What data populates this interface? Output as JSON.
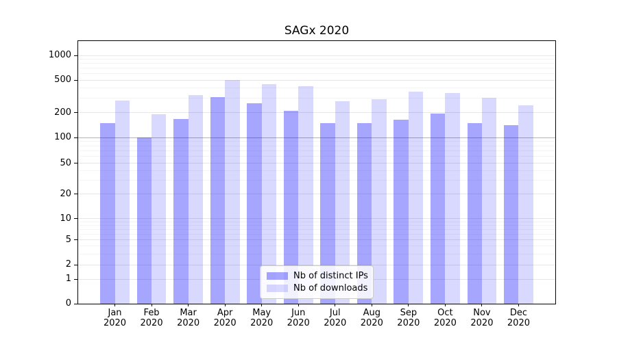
{
  "title": "SAGx 2020",
  "chart_data": {
    "type": "bar",
    "title": "SAGx 2020",
    "categories": [
      "Jan",
      "Feb",
      "Mar",
      "Apr",
      "May",
      "Jun",
      "Jul",
      "Aug",
      "Sep",
      "Oct",
      "Nov",
      "Dec"
    ],
    "year": "2020",
    "series": [
      {
        "name": "Nb of distinct IPs",
        "color": "rgba(0,0,255,0.35)",
        "values": [
          150,
          100,
          168,
          308,
          260,
          212,
          150,
          150,
          165,
          196,
          150,
          142
        ]
      },
      {
        "name": "Nb of downloads",
        "color": "rgba(0,0,255,0.15)",
        "values": [
          280,
          190,
          330,
          500,
          445,
          420,
          275,
          290,
          360,
          350,
          305,
          245
        ]
      }
    ],
    "yscale": "symlog",
    "yticks": [
      0,
      1,
      2,
      5,
      10,
      20,
      50,
      100,
      200,
      500,
      1000
    ],
    "ylim": [
      0,
      1500
    ],
    "grid": true,
    "legend_position": "lower-center"
  }
}
